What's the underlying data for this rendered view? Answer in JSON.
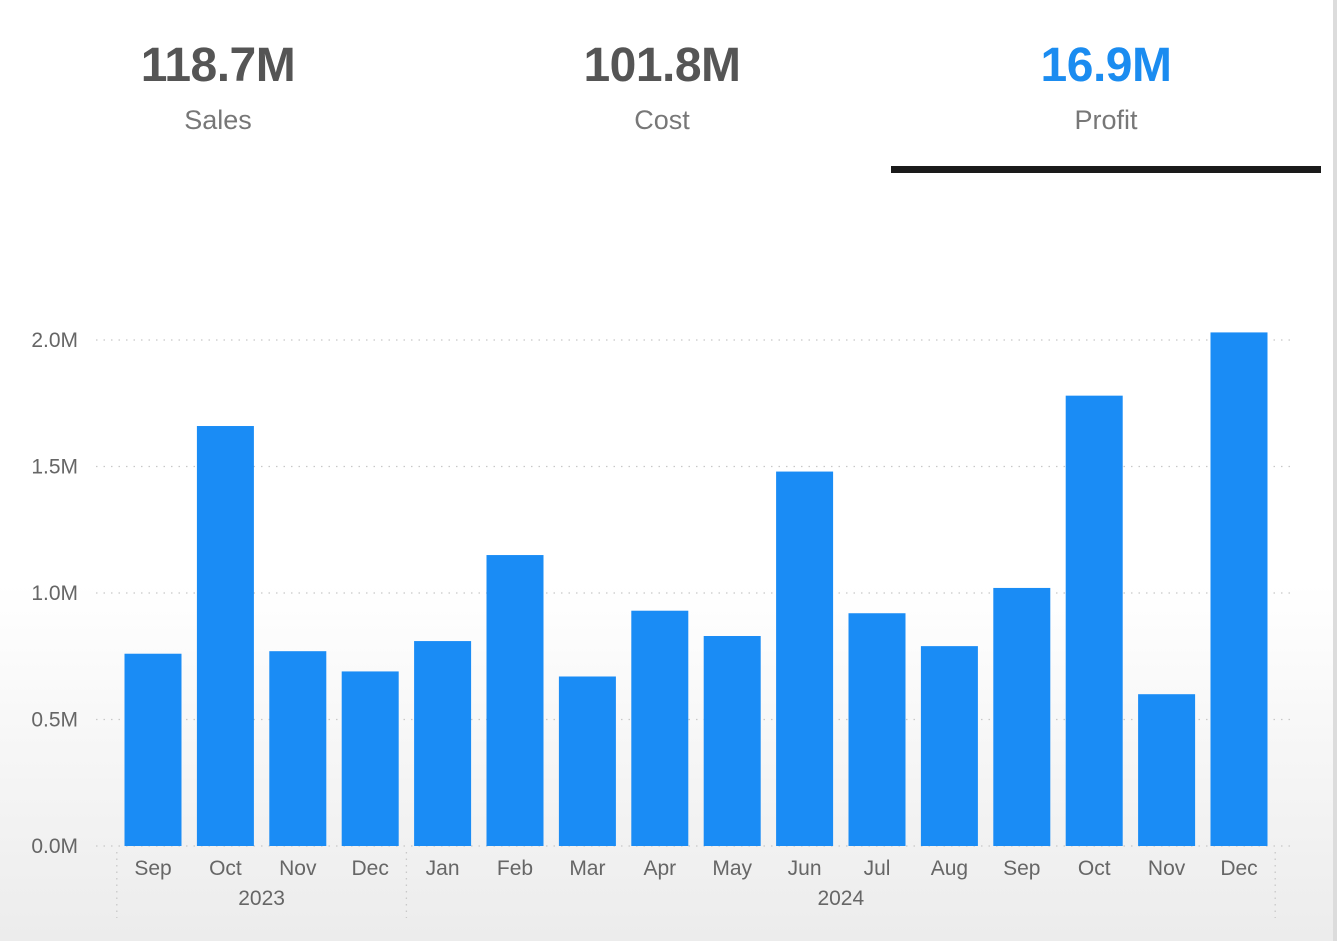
{
  "kpis": [
    {
      "value": "118.7M",
      "label": "Sales"
    },
    {
      "value": "101.8M",
      "label": "Cost"
    },
    {
      "value": "16.9M",
      "label": "Profit"
    }
  ],
  "selected_kpi": "Profit",
  "colors": {
    "accent": "#1b8cf0",
    "bar": "#1a8cf5",
    "underline": "#1a1a1a",
    "kpi_text": "#555555"
  },
  "chart_data": {
    "type": "bar",
    "categories": [
      "Sep",
      "Oct",
      "Nov",
      "Dec",
      "Jan",
      "Feb",
      "Mar",
      "Apr",
      "May",
      "Jun",
      "Jul",
      "Aug",
      "Sep",
      "Oct",
      "Nov",
      "Dec"
    ],
    "values": [
      0.76,
      1.66,
      0.77,
      0.69,
      0.81,
      1.15,
      0.67,
      0.93,
      0.83,
      1.48,
      0.92,
      0.79,
      1.02,
      1.78,
      0.6,
      2.03
    ],
    "year_groups": [
      {
        "label": "2023",
        "count": 4
      },
      {
        "label": "2024",
        "count": 12
      }
    ],
    "ylim": [
      0,
      2.0
    ],
    "y_ticks": [
      0,
      0.5,
      1.0,
      1.5,
      2.0
    ],
    "y_tick_labels": [
      "0.0M",
      "0.5M",
      "1.0M",
      "1.5M",
      "2.0M"
    ],
    "title": "",
    "xlabel": "",
    "ylabel": "",
    "grid": true
  }
}
